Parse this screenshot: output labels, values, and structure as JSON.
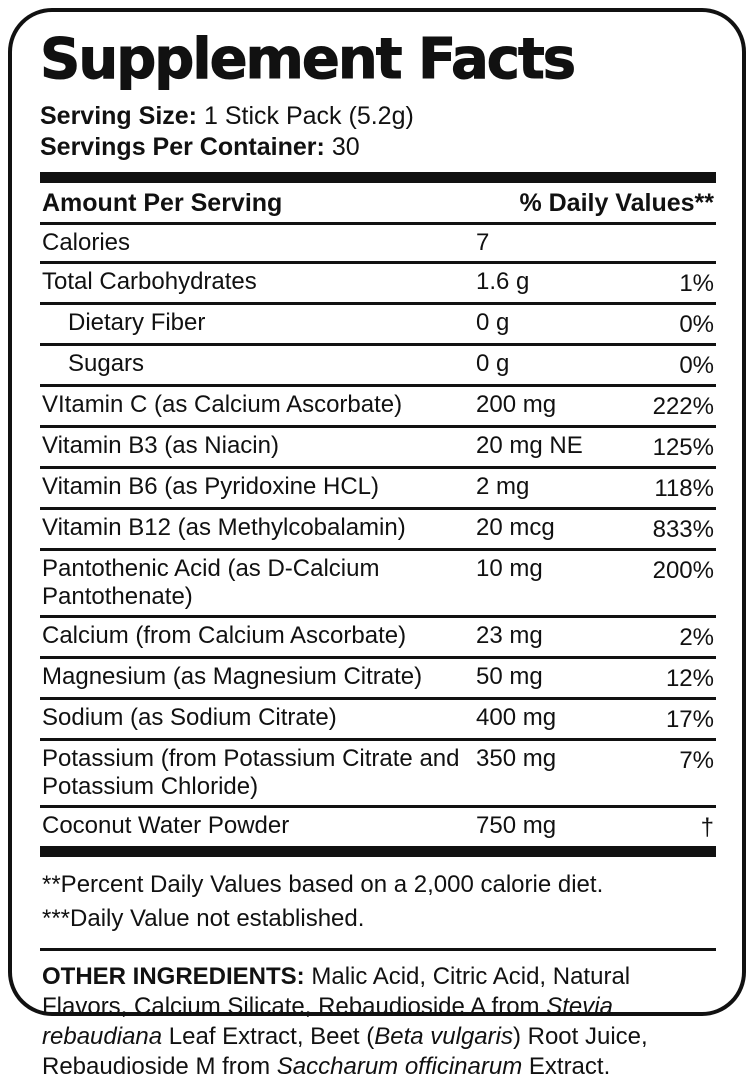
{
  "label": {
    "title": "Supplement Facts",
    "serving": {
      "size_label": "Serving Size:",
      "size_value": "1 Stick Pack (5.2g)",
      "container_label": "Servings Per Container:",
      "container_value": "30"
    },
    "table": {
      "header_left": "Amount Per Serving",
      "header_right": "% Daily Values**",
      "rows": [
        {
          "name": "Calories",
          "amount": "7",
          "dv": "",
          "indent": false
        },
        {
          "name": "Total Carbohydrates",
          "amount": "1.6 g",
          "dv": "1%",
          "indent": false
        },
        {
          "name": "Dietary Fiber",
          "amount": "0 g",
          "dv": "0%",
          "indent": true
        },
        {
          "name": "Sugars",
          "amount": "0 g",
          "dv": "0%",
          "indent": true
        },
        {
          "name": "VItamin C (as Calcium Ascorbate)",
          "amount": "200 mg",
          "dv": "222%",
          "indent": false
        },
        {
          "name": "Vitamin B3 (as Niacin)",
          "amount": "20 mg NE",
          "dv": "125%",
          "indent": false
        },
        {
          "name": "Vitamin B6 (as Pyridoxine HCL)",
          "amount": "2 mg",
          "dv": "118%",
          "indent": false
        },
        {
          "name": "Vitamin B12 (as Methylcobalamin)",
          "amount": "20 mcg",
          "dv": "833%",
          "indent": false
        },
        {
          "name": "Pantothenic Acid (as D-Calcium Pantothenate)",
          "amount": "10 mg",
          "dv": "200%",
          "indent": false
        },
        {
          "name": "Calcium (from Calcium Ascorbate)",
          "amount": "23 mg",
          "dv": "2%",
          "indent": false
        },
        {
          "name": "Magnesium (as Magnesium Citrate)",
          "amount": "50 mg",
          "dv": "12%",
          "indent": false
        },
        {
          "name": "Sodium (as Sodium Citrate)",
          "amount": "400 mg",
          "dv": "17%",
          "indent": false
        },
        {
          "name": "Potassium (from Potassium Citrate and Potassium Chloride)",
          "amount": "350 mg",
          "dv": "7%",
          "indent": false
        },
        {
          "name": "Coconut Water Powder",
          "amount": "750 mg",
          "dv": "†",
          "indent": false
        }
      ]
    },
    "footnotes": {
      "line1": "**Percent Daily Values based on a 2,000 calorie diet.",
      "line2": "***Daily Value not established."
    },
    "other_ingredients": {
      "segments": [
        {
          "text": "OTHER INGREDIENTS:",
          "bold": true
        },
        {
          "text": " Malic Acid, Citric Acid, Natural Flavors, Calcium Silicate, Rebaudioside A from "
        },
        {
          "text": "Stevia rebaudiana",
          "italic": true
        },
        {
          "text": " Leaf Extract, Beet ("
        },
        {
          "text": "Beta vulgaris",
          "italic": true
        },
        {
          "text": ") Root Juice, Rebaudioside M from "
        },
        {
          "text": "Saccharum officinarum",
          "italic": true
        },
        {
          "text": " Extract."
        }
      ]
    },
    "colors": {
      "text": "#111111",
      "background": "#ffffff",
      "border": "#111111"
    }
  }
}
